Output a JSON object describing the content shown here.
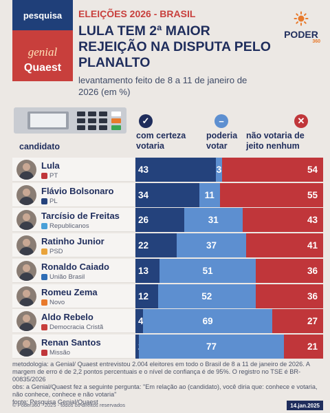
{
  "header": {
    "brand_tag": "pesquisa",
    "brand_genial": "genial",
    "brand_quaest": "Quaest",
    "eyebrow": "ELEIÇÕES 2026 - BRASIL",
    "headline": "LULA TEM 2ª MAIOR REJEIÇÃO NA DISPUTA PELO PLANALTO",
    "subtitle": "levantamento feito de 8 a 11 de janeiro de 2026 (em %)",
    "logo_word": "PODER",
    "logo_num": "360"
  },
  "columns": {
    "candidate": "candidato",
    "c1": "com certeza votaria",
    "c2": "poderia votar",
    "c3": "não votaria de jeito nenhum"
  },
  "colors": {
    "c1": "#24427c",
    "c2": "#5d8fd0",
    "c3": "#c0363a",
    "header_red": "#c83f3c",
    "header_blue": "#1f3f79"
  },
  "chart_data": {
    "type": "bar",
    "stacked": true,
    "orientation": "horizontal",
    "categories": [
      "Lula",
      "Flávio Bolsonaro",
      "Tarcísio de Freitas",
      "Ratinho Junior",
      "Ronaldo Caiado",
      "Romeu Zema",
      "Aldo Rebelo",
      "Renan Santos"
    ],
    "parties": [
      "PT",
      "PL",
      "Republicanos",
      "PSD",
      "União Brasil",
      "Novo",
      "Democracia Cristã",
      "Missão"
    ],
    "series": [
      {
        "name": "com certeza votaria",
        "values": [
          43,
          34,
          26,
          22,
          13,
          12,
          4,
          2
        ]
      },
      {
        "name": "poderia votar",
        "values": [
          3,
          11,
          31,
          37,
          51,
          52,
          69,
          77
        ]
      },
      {
        "name": "não votaria de jeito nenhum",
        "values": [
          54,
          55,
          43,
          41,
          36,
          36,
          27,
          21
        ]
      }
    ],
    "xlim": [
      0,
      100
    ]
  },
  "rows": [
    {
      "name": "Lula",
      "party": "PT",
      "party_color": "#c0363a",
      "v1": "43",
      "v2": "3",
      "v3": "54"
    },
    {
      "name": "Flávio Bolsonaro",
      "party": "PL",
      "party_color": "#24427c",
      "v1": "34",
      "v2": "11",
      "v3": "55"
    },
    {
      "name": "Tarcísio de Freitas",
      "party": "Republicanos",
      "party_color": "#4aa0d8",
      "v1": "26",
      "v2": "31",
      "v3": "43"
    },
    {
      "name": "Ratinho Junior",
      "party": "PSD",
      "party_color": "#e9a33a",
      "v1": "22",
      "v2": "37",
      "v3": "41"
    },
    {
      "name": "Ronaldo Caiado",
      "party": "União Brasil",
      "party_color": "#2f6db5",
      "v1": "13",
      "v2": "51",
      "v3": "36"
    },
    {
      "name": "Romeu Zema",
      "party": "Novo",
      "party_color": "#e8792b",
      "v1": "12",
      "v2": "52",
      "v3": "36"
    },
    {
      "name": "Aldo Rebelo",
      "party": "Democracia Cristã",
      "party_color": "#c83f3c",
      "v1": "4",
      "v2": "69",
      "v3": "27"
    },
    {
      "name": "Renan Santos",
      "party": "Missão",
      "party_color": "#c0363a",
      "v1": "2",
      "v2": "77",
      "v3": "21"
    }
  ],
  "footer": {
    "methodology": "metodologia: a Genial/ Quaest entrevistou 2.004 eleitores em todo o Brasil de 8 a 11 de janeiro de 2026. A margem de erro é de 2,2 pontos percentuais e o nível de confiança é de 95%. O registro no TSE é BR-00835/2026",
    "question": "obs: a Genial/Quaest fez a seguinte pergunta: \"Em relação ao (candidato), você diria que: conhece e votaria, não conhece, conhece e não votaria\"",
    "source": "fonte: Pesquisa Genial/Quaest",
    "copyright": "© Poder360 - 2025 - todos os direitos reservados",
    "date": "14.jan.2025"
  }
}
